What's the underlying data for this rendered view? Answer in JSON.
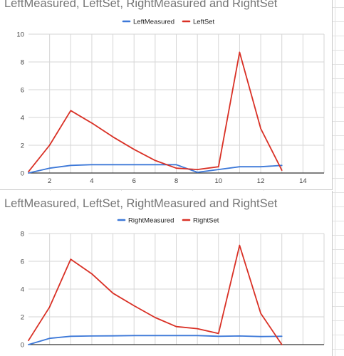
{
  "charts": [
    {
      "title": "LeftMeasured, LeftSet, RightMeasured and RightSet",
      "legend": [
        {
          "name": "LeftMeasured",
          "color": "#3c78d8"
        },
        {
          "name": "LeftSet",
          "color": "#d93025"
        }
      ]
    },
    {
      "title": "LeftMeasured, LeftSet, RightMeasured and RightSet",
      "legend": [
        {
          "name": "RightMeasured",
          "color": "#3c78d8"
        },
        {
          "name": "RightSet",
          "color": "#d93025"
        }
      ]
    }
  ],
  "chart_data": [
    {
      "type": "line",
      "title": "LeftMeasured, LeftSet, RightMeasured and RightSet",
      "xlabel": "",
      "ylabel": "",
      "xlim": [
        1,
        15
      ],
      "ylim": [
        0,
        10
      ],
      "xticks": [
        2,
        4,
        6,
        8,
        10,
        12,
        14
      ],
      "yticks": [
        0,
        2,
        4,
        6,
        8,
        10
      ],
      "grid": true,
      "legend_position": "top",
      "x": [
        1,
        2,
        3,
        4,
        5,
        6,
        7,
        8,
        9,
        10,
        11,
        12,
        13
      ],
      "series": [
        {
          "name": "LeftMeasured",
          "color": "#3c78d8",
          "values": [
            0,
            0.35,
            0.55,
            0.6,
            0.6,
            0.6,
            0.6,
            0.6,
            0.05,
            0.25,
            0.45,
            0.45,
            0.55
          ]
        },
        {
          "name": "LeftSet",
          "color": "#d93025",
          "values": [
            0.1,
            2,
            4.5,
            3.6,
            2.6,
            1.7,
            0.9,
            0.35,
            0.25,
            0.45,
            8.7,
            3.2,
            0.2
          ]
        }
      ]
    },
    {
      "type": "line",
      "title": "LeftMeasured, LeftSet, RightMeasured and RightSet",
      "xlabel": "",
      "ylabel": "",
      "xlim": [
        1,
        15
      ],
      "ylim": [
        0,
        8
      ],
      "xticks": [],
      "yticks": [
        0,
        2,
        4,
        6,
        8
      ],
      "grid": true,
      "legend_position": "top",
      "x": [
        1,
        2,
        3,
        4,
        5,
        6,
        7,
        8,
        9,
        10,
        11,
        12,
        13
      ],
      "series": [
        {
          "name": "RightMeasured",
          "color": "#3c78d8",
          "values": [
            0,
            0.45,
            0.6,
            0.62,
            0.63,
            0.65,
            0.65,
            0.65,
            0.65,
            0.6,
            0.62,
            0.58,
            0.6
          ]
        },
        {
          "name": "RightSet",
          "color": "#d93025",
          "values": [
            0.3,
            2.7,
            6.15,
            5.1,
            3.7,
            2.8,
            1.95,
            1.3,
            1.15,
            0.8,
            7.15,
            2.25,
            0
          ]
        }
      ]
    }
  ]
}
